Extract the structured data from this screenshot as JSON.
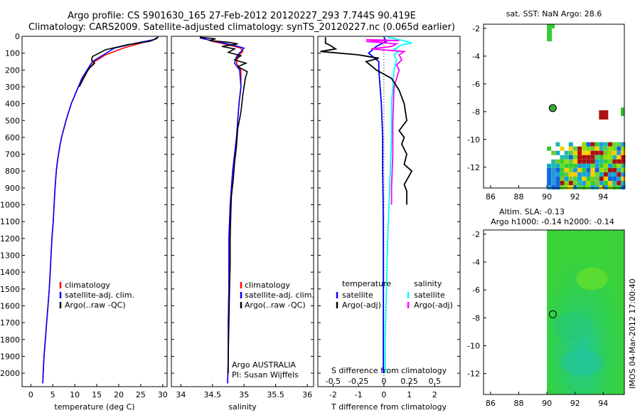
{
  "title_line1": "Argo profile: CS 5901630_165 27-Feb-2012 20120227_293 7.744S 90.419E",
  "title_line2": "Climatology: CARS2009. Satellite-adjusted climatology: synTS_20120227.nc (0.065d earlier)",
  "colors": {
    "clim": "#ff0000",
    "sat": "#0000ff",
    "argo": "#000000",
    "sat_s": "#00ffff",
    "argo_s": "#ff00ff"
  },
  "chart_data": [
    {
      "type": "line",
      "name": "temperature",
      "xlabel": "temperature (deg C)",
      "xlim": [
        -2,
        31
      ],
      "ylim": [
        2080,
        0
      ],
      "xticks": [
        0,
        5,
        10,
        15,
        20,
        25,
        30
      ],
      "yticks": [
        0,
        100,
        200,
        300,
        400,
        500,
        600,
        700,
        800,
        900,
        1000,
        1100,
        1200,
        1300,
        1400,
        1500,
        1600,
        1700,
        1800,
        1900,
        2000
      ],
      "legend": [
        "climatology",
        "satellite-adj. clim.",
        "Argo(..raw -QC)"
      ],
      "series": [
        {
          "name": "climatology",
          "color": "clim",
          "points": [
            [
              28.8,
              5
            ],
            [
              28,
              20
            ],
            [
              25,
              40
            ],
            [
              21,
              70
            ],
            [
              17,
              110
            ],
            [
              14.5,
              150
            ],
            [
              13,
              200
            ],
            [
              11.8,
              250
            ],
            [
              10.8,
              300
            ],
            [
              10,
              350
            ],
            [
              9.2,
              400
            ],
            [
              8.6,
              450
            ],
            [
              8,
              500
            ],
            [
              7.5,
              550
            ],
            [
              7,
              600
            ],
            [
              6.6,
              650
            ],
            [
              6.3,
              700
            ],
            [
              6,
              750
            ],
            [
              5.8,
              800
            ],
            [
              5.5,
              900
            ],
            [
              5.3,
              1000
            ],
            [
              5.1,
              1100
            ],
            [
              4.8,
              1200
            ],
            [
              4.6,
              1300
            ],
            [
              4.4,
              1400
            ],
            [
              4.2,
              1500
            ],
            [
              3.9,
              1600
            ],
            [
              3.6,
              1700
            ],
            [
              3.3,
              1800
            ],
            [
              3,
              1900
            ],
            [
              2.8,
              2000
            ],
            [
              2.7,
              2060
            ]
          ]
        },
        {
          "name": "satellite-adj. clim.",
          "color": "sat",
          "points": [
            [
              29,
              5
            ],
            [
              28,
              20
            ],
            [
              24,
              40
            ],
            [
              19,
              70
            ],
            [
              16.5,
              110
            ],
            [
              14,
              150
            ],
            [
              12.8,
              200
            ],
            [
              11.6,
              250
            ],
            [
              10.8,
              300
            ],
            [
              10,
              350
            ],
            [
              9.2,
              400
            ],
            [
              8.6,
              450
            ],
            [
              8,
              500
            ],
            [
              7.5,
              550
            ],
            [
              7,
              600
            ],
            [
              6.6,
              650
            ],
            [
              6.3,
              700
            ],
            [
              6,
              750
            ],
            [
              5.8,
              800
            ],
            [
              5.5,
              900
            ],
            [
              5.3,
              1000
            ],
            [
              5.1,
              1100
            ],
            [
              4.8,
              1200
            ],
            [
              4.6,
              1300
            ],
            [
              4.4,
              1400
            ],
            [
              4.2,
              1500
            ],
            [
              3.9,
              1600
            ],
            [
              3.6,
              1700
            ],
            [
              3.3,
              1800
            ],
            [
              3,
              1900
            ],
            [
              2.8,
              2000
            ],
            [
              2.7,
              2060
            ]
          ]
        },
        {
          "name": "Argo(..raw -QC)",
          "color": "argo",
          "points": [
            [
              29,
              5
            ],
            [
              28.5,
              15
            ],
            [
              27,
              30
            ],
            [
              22,
              50
            ],
            [
              17,
              80
            ],
            [
              14,
              120
            ],
            [
              13.8,
              140
            ],
            [
              14.5,
              160
            ],
            [
              13.3,
              190
            ],
            [
              12.8,
              210
            ],
            [
              12,
              250
            ],
            [
              11,
              300
            ]
          ]
        }
      ]
    },
    {
      "type": "line",
      "name": "salinity",
      "xlabel": "salinity",
      "xlim": [
        33.85,
        36.1
      ],
      "ylim": [
        2080,
        0
      ],
      "xticks": [
        34,
        34.5,
        35,
        35.5,
        36
      ],
      "legend": [
        "climatology",
        "satellite-adj. clim.",
        "Argo(..raw -QC)"
      ],
      "annotation": [
        "Argo AUSTRALIA",
        "PI: Susan Wijffels"
      ],
      "series": [
        {
          "name": "climatology",
          "color": "clim",
          "points": [
            [
              34.35,
              10
            ],
            [
              34.5,
              30
            ],
            [
              34.75,
              50
            ],
            [
              34.95,
              70
            ],
            [
              34.98,
              90
            ],
            [
              34.9,
              120
            ],
            [
              34.88,
              160
            ],
            [
              34.95,
              200
            ],
            [
              34.95,
              300
            ],
            [
              34.92,
              400
            ],
            [
              34.9,
              500
            ],
            [
              34.88,
              600
            ],
            [
              34.85,
              700
            ],
            [
              34.82,
              800
            ],
            [
              34.8,
              900
            ],
            [
              34.78,
              1000
            ],
            [
              34.77,
              1100
            ],
            [
              34.76,
              1200
            ],
            [
              34.76,
              1300
            ],
            [
              34.76,
              1400
            ],
            [
              34.76,
              1500
            ],
            [
              34.75,
              1700
            ],
            [
              34.75,
              1900
            ],
            [
              34.74,
              2060
            ]
          ]
        },
        {
          "name": "satellite-adj. clim.",
          "color": "sat",
          "points": [
            [
              34.3,
              10
            ],
            [
              34.55,
              30
            ],
            [
              34.8,
              50
            ],
            [
              35,
              70
            ],
            [
              34.95,
              90
            ],
            [
              34.88,
              120
            ],
            [
              34.85,
              160
            ],
            [
              34.93,
              200
            ],
            [
              34.95,
              300
            ],
            [
              34.92,
              400
            ],
            [
              34.9,
              500
            ],
            [
              34.88,
              600
            ],
            [
              34.85,
              700
            ],
            [
              34.82,
              800
            ],
            [
              34.8,
              900
            ],
            [
              34.78,
              1000
            ],
            [
              34.77,
              1100
            ],
            [
              34.76,
              1200
            ],
            [
              34.76,
              1300
            ],
            [
              34.76,
              1400
            ],
            [
              34.76,
              1500
            ],
            [
              34.75,
              1700
            ],
            [
              34.75,
              1900
            ],
            [
              34.74,
              2060
            ]
          ]
        },
        {
          "name": "Argo(..raw -QC)",
          "color": "argo",
          "points": [
            [
              34.3,
              5
            ],
            [
              34.55,
              15
            ],
            [
              34.45,
              25
            ],
            [
              34.75,
              35
            ],
            [
              34.9,
              45
            ],
            [
              34.65,
              60
            ],
            [
              34.85,
              75
            ],
            [
              34.75,
              95
            ],
            [
              34.95,
              115
            ],
            [
              34.85,
              140
            ],
            [
              35.03,
              160
            ],
            [
              34.9,
              180
            ],
            [
              35.05,
              210
            ],
            [
              35.02,
              250
            ],
            [
              34.98,
              350
            ],
            [
              34.95,
              450
            ],
            [
              34.9,
              550
            ],
            [
              34.88,
              650
            ],
            [
              34.85,
              750
            ],
            [
              34.83,
              850
            ],
            [
              34.8,
              950
            ],
            [
              34.79,
              1050
            ],
            [
              34.78,
              1200
            ],
            [
              34.78,
              1350
            ],
            [
              34.77,
              1500
            ],
            [
              34.76,
              1700
            ],
            [
              34.75,
              1900
            ],
            [
              34.75,
              2000
            ]
          ]
        }
      ]
    },
    {
      "type": "line",
      "name": "differences",
      "xlabel": "T difference from climatology",
      "xlabel_top": "S difference from climatology",
      "xlim": [
        -2.6,
        3.0
      ],
      "ylim": [
        2080,
        0
      ],
      "xticks_t": [
        -2,
        -1,
        0,
        1,
        2
      ],
      "xticks_s": [
        "-0.5",
        "-0.25",
        "0",
        "0.25",
        "0.5"
      ],
      "legend_left_title": "temperature",
      "legend_left": [
        "satellite",
        "Argo(-adj)"
      ],
      "legend_right_title": "salinity",
      "legend_right": [
        "satellite",
        "Argo(-adj)"
      ],
      "series": [
        {
          "name": "T satellite",
          "color": "sat",
          "points": [
            [
              0,
              5
            ],
            [
              0.1,
              30
            ],
            [
              -0.3,
              60
            ],
            [
              -0.6,
              100
            ],
            [
              -0.2,
              150
            ],
            [
              -0.2,
              200
            ],
            [
              -0.15,
              300
            ],
            [
              -0.1,
              400
            ],
            [
              -0.05,
              600
            ],
            [
              -0.05,
              800
            ],
            [
              -0.03,
              1000
            ],
            [
              -0.02,
              1300
            ],
            [
              -0.02,
              1600
            ],
            [
              -0.02,
              2000
            ]
          ]
        },
        {
          "name": "T Argo(-adj)",
          "color": "argo",
          "points": [
            [
              -2.3,
              5
            ],
            [
              -2.3,
              40
            ],
            [
              -2.1,
              55
            ],
            [
              -1.9,
              75
            ],
            [
              -2.5,
              90
            ],
            [
              -1,
              110
            ],
            [
              -0.2,
              130
            ],
            [
              -0.7,
              150
            ],
            [
              -0.3,
              200
            ],
            [
              0.3,
              250
            ],
            [
              0.6,
              320
            ],
            [
              0.8,
              400
            ],
            [
              0.9,
              500
            ],
            [
              0.6,
              560
            ],
            [
              0.8,
              600
            ],
            [
              0.7,
              640
            ],
            [
              0.9,
              700
            ],
            [
              0.8,
              760
            ],
            [
              1.1,
              800
            ],
            [
              0.8,
              880
            ],
            [
              0.9,
              920
            ],
            [
              0.9,
              1000
            ]
          ]
        },
        {
          "name": "S satellite",
          "color": "sat_s",
          "points": [
            [
              0.15,
              5
            ],
            [
              0.9,
              30
            ],
            [
              1.1,
              40
            ],
            [
              0.7,
              50
            ],
            [
              0.4,
              80
            ],
            [
              0.6,
              90
            ],
            [
              0.4,
              110
            ],
            [
              0.5,
              140
            ],
            [
              0.4,
              200
            ],
            [
              0.35,
              300
            ],
            [
              0.3,
              400
            ],
            [
              0.3,
              600
            ],
            [
              0.25,
              800
            ],
            [
              0.2,
              1000
            ],
            [
              0.15,
              1200
            ],
            [
              0.1,
              1500
            ],
            [
              0.05,
              1800
            ],
            [
              0.05,
              2000
            ]
          ]
        },
        {
          "name": "S Argo(-adj)",
          "color": "argo_s",
          "points": [
            [
              -0.7,
              20
            ],
            [
              0.6,
              25
            ],
            [
              -0.7,
              30
            ],
            [
              0.5,
              45
            ],
            [
              0.3,
              60
            ],
            [
              -0.5,
              75
            ],
            [
              0.8,
              90
            ],
            [
              0.6,
              110
            ],
            [
              0.7,
              140
            ],
            [
              0.5,
              170
            ],
            [
              0.6,
              200
            ],
            [
              0.5,
              250
            ],
            [
              0.4,
              300
            ],
            [
              0.35,
              500
            ],
            [
              0.35,
              700
            ],
            [
              0.3,
              900
            ],
            [
              0.3,
              1000
            ]
          ]
        }
      ]
    },
    {
      "type": "heatmap",
      "name": "sst_map",
      "title": "sat. SST: NaN Argo: 28.6",
      "xlim": [
        85.5,
        95.5
      ],
      "ylim": [
        -13.5,
        -1.7
      ],
      "xticks": [
        86,
        88,
        90,
        92,
        94
      ],
      "yticks": [
        -2,
        -4,
        -6,
        -8,
        -10,
        -12
      ],
      "argo_position": [
        90.419,
        -7.744
      ],
      "marker_fill": "#33aa33"
    },
    {
      "type": "heatmap",
      "name": "sla_map",
      "title_line1": "Altim. SLA: -0.13",
      "title_line2": "Argo h1000: -0.14 h2000: -0.14",
      "xlim": [
        85.5,
        95.5
      ],
      "ylim": [
        -13.5,
        -1.7
      ],
      "xticks": [
        86,
        88,
        90,
        92,
        94
      ],
      "yticks": [
        -2,
        -4,
        -6,
        -8,
        -10,
        -12
      ],
      "argo_position": [
        90.419,
        -7.744
      ],
      "field_start_lon": 90.0
    }
  ],
  "footer_stamp": "IMOS 04-Mar-2012 17:00:40"
}
